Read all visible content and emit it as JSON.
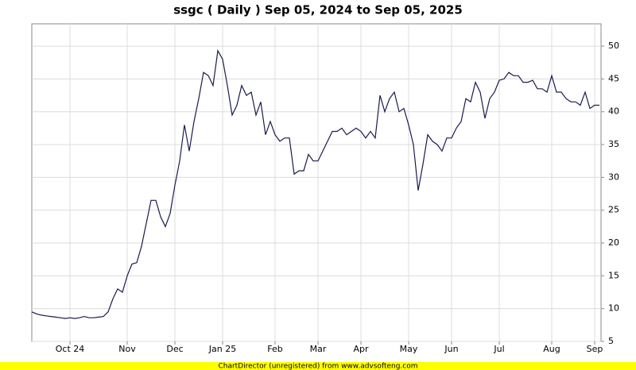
{
  "chart_data": {
    "type": "line",
    "title": "ssgc ( Daily ) Sep 05, 2024 to Sep 05, 2025",
    "footer": "ChartDirector (unregistered) from www.advsofteng.com",
    "categories": [
      null,
      null,
      null,
      null,
      null,
      null,
      null,
      null,
      "Oct 24",
      null,
      null,
      null,
      null,
      null,
      null,
      null,
      null,
      null,
      null,
      null,
      "Nov",
      null,
      null,
      null,
      null,
      null,
      null,
      null,
      null,
      null,
      "Dec",
      null,
      null,
      null,
      null,
      null,
      null,
      null,
      null,
      null,
      "Jan 25",
      null,
      null,
      null,
      null,
      null,
      null,
      null,
      null,
      null,
      null,
      "Feb",
      null,
      null,
      null,
      null,
      null,
      null,
      null,
      null,
      "Mar",
      null,
      null,
      null,
      null,
      null,
      null,
      null,
      null,
      "Apr",
      null,
      null,
      null,
      null,
      null,
      null,
      null,
      null,
      null,
      "May",
      null,
      null,
      null,
      null,
      null,
      null,
      null,
      null,
      "Jun",
      null,
      null,
      null,
      null,
      null,
      null,
      null,
      null,
      null,
      "Jul",
      null,
      null,
      null,
      null,
      null,
      null,
      null,
      null,
      null,
      null,
      "Aug",
      null,
      null,
      null,
      null,
      null,
      null,
      null,
      null,
      "Sep",
      null
    ],
    "values": [
      9.5,
      9.2,
      9.0,
      8.9,
      8.8,
      8.7,
      8.6,
      8.5,
      8.6,
      8.5,
      8.6,
      8.8,
      8.6,
      8.6,
      8.7,
      8.8,
      9.5,
      11.5,
      13.0,
      12.5,
      15,
      16.8,
      17,
      19.5,
      23,
      26.5,
      26.5,
      24,
      22.5,
      24.5,
      28.8,
      32.5,
      38,
      34,
      38.5,
      42,
      46,
      45.5,
      44,
      49.3,
      48,
      44,
      39.5,
      41,
      44,
      42.5,
      43,
      39.5,
      41.5,
      36.5,
      38.5,
      36.5,
      35.5,
      36,
      36,
      30.5,
      31,
      31,
      33.5,
      32.5,
      32.5,
      34,
      35.5,
      37,
      37,
      37.5,
      36.5,
      37,
      37.5,
      37,
      36,
      37,
      36,
      42.5,
      40,
      42,
      43,
      40,
      40.5,
      38,
      35,
      28,
      32,
      36.5,
      35.5,
      35,
      34,
      36,
      36,
      37.5,
      38.5,
      42,
      41.5,
      44.5,
      43,
      39,
      42,
      43,
      44.8,
      45,
      46,
      45.5,
      45.5,
      44.5,
      44.5,
      44.8,
      43.5,
      43.5,
      43,
      45.5,
      43,
      43,
      42,
      41.5,
      41.5,
      41,
      43,
      40.5,
      41,
      41
    ],
    "color": "#1a1a4e",
    "ylim": [
      5,
      53.4
    ],
    "yticks": [
      5,
      10,
      15,
      20,
      25,
      30,
      35,
      40,
      45,
      50
    ],
    "grid": true
  }
}
